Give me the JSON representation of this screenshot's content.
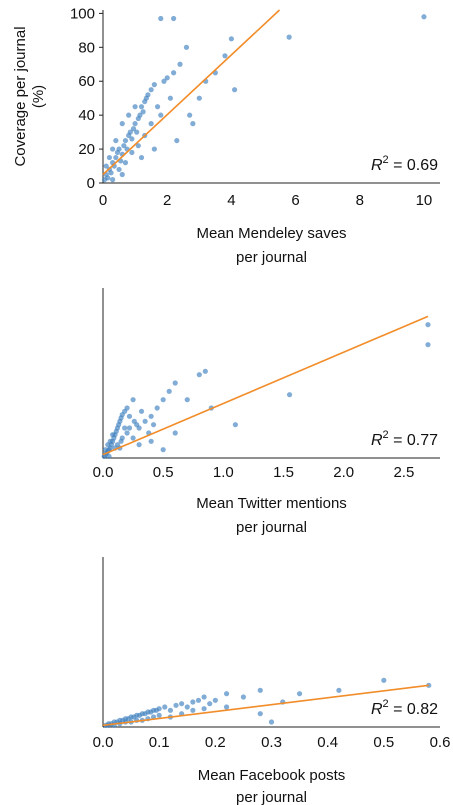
{
  "colors": {
    "points": "#3d7fbf",
    "fit_line": "#f28c28",
    "axis": "#222222"
  },
  "chart_data": [
    {
      "type": "scatter",
      "ylabel_lines": [
        "Coverage per journal",
        "(%)"
      ],
      "xlabel_lines": [
        "Mean Mendeley saves",
        "per journal"
      ],
      "xlim": [
        0,
        10.5
      ],
      "ylim": [
        0,
        102
      ],
      "xticks": [
        0,
        2,
        4,
        6,
        8,
        10
      ],
      "yticks": [
        0,
        20,
        40,
        60,
        80,
        100
      ],
      "r2": "0.69",
      "fit": {
        "x": [
          0,
          5.5
        ],
        "y": [
          5,
          102
        ]
      },
      "points": [
        [
          0.05,
          2
        ],
        [
          0.1,
          5
        ],
        [
          0.15,
          3
        ],
        [
          0.2,
          8
        ],
        [
          0.25,
          6
        ],
        [
          0.3,
          12
        ],
        [
          0.35,
          10
        ],
        [
          0.4,
          15
        ],
        [
          0.45,
          18
        ],
        [
          0.5,
          20
        ],
        [
          0.55,
          13
        ],
        [
          0.6,
          17
        ],
        [
          0.65,
          22
        ],
        [
          0.7,
          25
        ],
        [
          0.75,
          20
        ],
        [
          0.8,
          28
        ],
        [
          0.85,
          30
        ],
        [
          0.9,
          26
        ],
        [
          0.95,
          32
        ],
        [
          1.0,
          35
        ],
        [
          1.05,
          30
        ],
        [
          1.1,
          38
        ],
        [
          1.15,
          40
        ],
        [
          1.2,
          45
        ],
        [
          1.25,
          42
        ],
        [
          1.3,
          48
        ],
        [
          1.35,
          50
        ],
        [
          1.4,
          52
        ],
        [
          1.5,
          55
        ],
        [
          1.6,
          58
        ],
        [
          1.7,
          45
        ],
        [
          1.8,
          40
        ],
        [
          1.9,
          60
        ],
        [
          2.0,
          62
        ],
        [
          2.1,
          50
        ],
        [
          2.2,
          65
        ],
        [
          2.4,
          70
        ],
        [
          2.6,
          80
        ],
        [
          2.7,
          40
        ],
        [
          3.0,
          50
        ],
        [
          3.2,
          60
        ],
        [
          3.5,
          65
        ],
        [
          3.8,
          75
        ],
        [
          4.0,
          85
        ],
        [
          4.1,
          55
        ],
        [
          5.8,
          86
        ],
        [
          10.0,
          98
        ],
        [
          1.8,
          97
        ],
        [
          2.2,
          97
        ],
        [
          0.3,
          20
        ],
        [
          0.5,
          8
        ],
        [
          0.7,
          12
        ],
        [
          0.9,
          18
        ],
        [
          1.1,
          22
        ],
        [
          1.3,
          28
        ],
        [
          1.5,
          35
        ],
        [
          0.2,
          15
        ],
        [
          0.4,
          25
        ],
        [
          0.6,
          35
        ],
        [
          0.8,
          40
        ],
        [
          1.0,
          45
        ],
        [
          0.1,
          10
        ],
        [
          0.3,
          2
        ],
        [
          0.6,
          5
        ],
        [
          1.2,
          15
        ],
        [
          1.6,
          20
        ],
        [
          2.3,
          25
        ],
        [
          2.8,
          35
        ]
      ]
    },
    {
      "type": "scatter",
      "xlabel_lines": [
        "Mean Twitter mentions",
        "per journal"
      ],
      "xlim": [
        0,
        2.8
      ],
      "ylim": [
        0,
        102
      ],
      "xticks": [
        0.0,
        0.5,
        1.0,
        1.5,
        2.0,
        2.5
      ],
      "xtick_labels": [
        "0.0",
        "0.5",
        "1.0",
        "1.5",
        "2.0",
        "2.5"
      ],
      "r2": "0.77",
      "fit": {
        "x": [
          0,
          2.7
        ],
        "y": [
          2,
          85
        ]
      },
      "points": [
        [
          0.01,
          1
        ],
        [
          0.02,
          2
        ],
        [
          0.03,
          3
        ],
        [
          0.04,
          4
        ],
        [
          0.05,
          5
        ],
        [
          0.06,
          6
        ],
        [
          0.07,
          8
        ],
        [
          0.08,
          10
        ],
        [
          0.09,
          12
        ],
        [
          0.1,
          14
        ],
        [
          0.11,
          16
        ],
        [
          0.12,
          18
        ],
        [
          0.13,
          20
        ],
        [
          0.14,
          22
        ],
        [
          0.15,
          24
        ],
        [
          0.16,
          26
        ],
        [
          0.18,
          28
        ],
        [
          0.2,
          30
        ],
        [
          0.22,
          25
        ],
        [
          0.25,
          35
        ],
        [
          0.28,
          20
        ],
        [
          0.3,
          18
        ],
        [
          0.35,
          22
        ],
        [
          0.4,
          25
        ],
        [
          0.45,
          30
        ],
        [
          0.5,
          35
        ],
        [
          0.55,
          40
        ],
        [
          0.6,
          45
        ],
        [
          0.7,
          35
        ],
        [
          0.8,
          50
        ],
        [
          0.85,
          52
        ],
        [
          0.9,
          30
        ],
        [
          1.1,
          20
        ],
        [
          1.55,
          38
        ],
        [
          2.7,
          80
        ],
        [
          2.7,
          68
        ],
        [
          0.05,
          1
        ],
        [
          0.1,
          6
        ],
        [
          0.15,
          10
        ],
        [
          0.2,
          15
        ],
        [
          0.25,
          12
        ],
        [
          0.3,
          8
        ],
        [
          0.4,
          10
        ],
        [
          0.5,
          5
        ],
        [
          0.6,
          15
        ],
        [
          0.02,
          5
        ],
        [
          0.04,
          8
        ],
        [
          0.06,
          10
        ],
        [
          0.08,
          14
        ],
        [
          0.12,
          8
        ],
        [
          0.14,
          6
        ],
        [
          0.16,
          12
        ],
        [
          0.18,
          18
        ],
        [
          0.22,
          18
        ],
        [
          0.26,
          22
        ],
        [
          0.32,
          28
        ],
        [
          0.38,
          15
        ],
        [
          0.42,
          20
        ]
      ]
    },
    {
      "type": "scatter",
      "xlabel_lines": [
        "Mean Facebook posts",
        "per journal"
      ],
      "xlim": [
        0,
        0.6
      ],
      "ylim": [
        0,
        102
      ],
      "xticks": [
        0.0,
        0.1,
        0.2,
        0.3,
        0.4,
        0.5,
        0.6
      ],
      "xtick_labels": [
        "0.0",
        "0.1",
        "0.2",
        "0.3",
        "0.4",
        "0.5",
        "0.6"
      ],
      "r2": "0.82",
      "fit": {
        "x": [
          0,
          0.58
        ],
        "y": [
          1,
          25
        ]
      },
      "points": [
        [
          0.005,
          1
        ],
        [
          0.01,
          2
        ],
        [
          0.015,
          2
        ],
        [
          0.02,
          3
        ],
        [
          0.025,
          3
        ],
        [
          0.03,
          4
        ],
        [
          0.035,
          4
        ],
        [
          0.04,
          5
        ],
        [
          0.045,
          5
        ],
        [
          0.05,
          6
        ],
        [
          0.055,
          6
        ],
        [
          0.06,
          7
        ],
        [
          0.065,
          7
        ],
        [
          0.07,
          8
        ],
        [
          0.075,
          8
        ],
        [
          0.08,
          9
        ],
        [
          0.085,
          9
        ],
        [
          0.09,
          10
        ],
        [
          0.095,
          10
        ],
        [
          0.1,
          11
        ],
        [
          0.11,
          12
        ],
        [
          0.12,
          10
        ],
        [
          0.13,
          13
        ],
        [
          0.14,
          14
        ],
        [
          0.15,
          12
        ],
        [
          0.16,
          15
        ],
        [
          0.17,
          16
        ],
        [
          0.18,
          18
        ],
        [
          0.19,
          14
        ],
        [
          0.2,
          16
        ],
        [
          0.22,
          12
        ],
        [
          0.25,
          18
        ],
        [
          0.28,
          22
        ],
        [
          0.3,
          3
        ],
        [
          0.32,
          15
        ],
        [
          0.35,
          20
        ],
        [
          0.42,
          22
        ],
        [
          0.5,
          28
        ],
        [
          0.58,
          25
        ],
        [
          0.28,
          8
        ],
        [
          0.22,
          20
        ],
        [
          0.01,
          1
        ],
        [
          0.02,
          1
        ],
        [
          0.03,
          2
        ],
        [
          0.04,
          3
        ],
        [
          0.05,
          3
        ],
        [
          0.06,
          4
        ],
        [
          0.07,
          4
        ],
        [
          0.08,
          5
        ],
        [
          0.09,
          6
        ],
        [
          0.1,
          7
        ],
        [
          0.12,
          6
        ],
        [
          0.14,
          8
        ],
        [
          0.16,
          10
        ],
        [
          0.18,
          11
        ]
      ]
    }
  ]
}
